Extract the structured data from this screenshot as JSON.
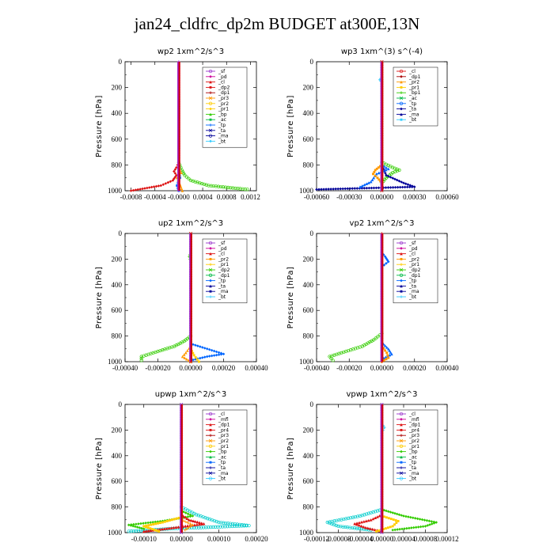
{
  "title": "jan24_cldfrc_dp2m  BUDGET at300E,13N",
  "ylabel": "Pressure [hPa]",
  "colors": {
    "purple": "#9933cc",
    "magenta": "#cc0099",
    "red": "#dd1111",
    "darkred": "#aa0000",
    "orange": "#ff9900",
    "yellow": "#ffcc00",
    "green": "#33cc00",
    "bgreen": "#00bb44",
    "blue": "#0066ff",
    "navy": "#000099",
    "cyan": "#33ccff",
    "teal": "#00cccc"
  },
  "chart_data": [
    {
      "type": "line",
      "title": "wp2   1xm^2/s^3",
      "ylim": [
        1000,
        0
      ],
      "yticks": [
        0,
        200,
        400,
        600,
        800,
        1000
      ],
      "xlim": [
        -0.0009,
        0.0013
      ],
      "xticks": [
        -0.0008,
        -0.0004,
        0.0,
        0.0004,
        0.0008,
        0.0012
      ],
      "xtick_labels": [
        "-0.0008",
        "-0.0004",
        "-0.0000",
        "0.0004",
        "0.0008",
        "0.0012"
      ],
      "legend": [
        "_sf",
        "_pd",
        "_cl",
        "_dp2",
        "_dp1",
        "_pr3",
        "_pr2",
        "_pr1",
        "_bp",
        "_ac",
        "_tp",
        "_ta",
        "_ma",
        "_bt"
      ],
      "legend_colors": [
        "purple",
        "magenta",
        "red",
        "red",
        "darkred",
        "orange",
        "yellow",
        "yellow",
        "green",
        "bgreen",
        "blue",
        "navy",
        "navy",
        "cyan"
      ],
      "series": [
        {
          "color": "green",
          "pressure": [
            780,
            840,
            880,
            920,
            960,
            990
          ],
          "values": [
            0,
            5e-05,
            0.0001,
            0.0002,
            0.0005,
            0.00115
          ]
        },
        {
          "color": "red",
          "pressure": [
            780,
            820,
            850,
            880,
            920,
            960,
            1000
          ],
          "values": [
            0,
            -4e-05,
            -8e-05,
            -4e-05,
            -0.0001,
            -0.0003,
            -0.0008
          ]
        },
        {
          "color": "orange",
          "pressure": [
            820,
            860,
            900,
            950,
            1000
          ],
          "values": [
            0,
            4e-05,
            -3e-05,
            2e-05,
            6e-05
          ]
        },
        {
          "color": "blue",
          "pressure": [
            850,
            900,
            960,
            1000
          ],
          "values": [
            0,
            2e-05,
            -3e-05,
            0
          ]
        },
        {
          "color": "purple",
          "pressure": [
            0,
            200,
            400,
            600,
            800,
            1000
          ],
          "values": [
            0,
            0,
            0,
            0,
            0,
            0
          ]
        }
      ]
    },
    {
      "type": "line",
      "title": "wp3   1xm^(3) s^(-4)",
      "ylim": [
        1000,
        0
      ],
      "yticks": [
        0,
        200,
        400,
        600,
        800,
        1000
      ],
      "xlim": [
        -0.0006,
        0.0006
      ],
      "xticks": [
        -0.0006,
        -0.0003,
        0.0,
        0.0003,
        0.0006
      ],
      "xtick_labels": [
        "-0.00060",
        "-0.00030",
        "0.00000",
        "0.00030",
        "0.00060"
      ],
      "legend": [
        "_cl",
        "_dp1",
        "_pr2",
        "_pr1",
        "_bp1",
        "_ac",
        "_tp",
        "_ta",
        "_ma",
        "_bt"
      ],
      "legend_colors": [
        "red",
        "darkred",
        "orange",
        "yellow",
        "green",
        "bgreen",
        "blue",
        "navy",
        "navy",
        "cyan"
      ],
      "series": [
        {
          "color": "green",
          "pressure": [
            780,
            820,
            840,
            860,
            900,
            940
          ],
          "values": [
            0,
            0.0001,
            0.00016,
            0.0001,
            4e-05,
            0
          ]
        },
        {
          "color": "navy",
          "pressure": [
            800,
            880,
            940,
            970,
            990
          ],
          "values": [
            0,
            4e-05,
            0.0002,
            0.0003,
            -0.0006
          ]
        },
        {
          "color": "blue",
          "pressure": [
            800,
            830,
            870,
            930,
            970
          ],
          "values": [
            0,
            6e-05,
            -5e-05,
            -0.0001,
            -0.0002
          ]
        },
        {
          "color": "orange",
          "pressure": [
            800,
            840,
            870,
            900,
            940
          ],
          "values": [
            0,
            -6e-05,
            -8e-05,
            -4e-05,
            0
          ]
        },
        {
          "color": "cyan",
          "pressure": [
            120,
            140,
            160
          ],
          "values": [
            0,
            -2e-05,
            0
          ]
        },
        {
          "color": "red",
          "pressure": [
            0,
            200,
            400,
            600,
            800,
            1000
          ],
          "values": [
            0,
            0,
            0,
            0,
            0,
            0
          ]
        }
      ]
    },
    {
      "type": "line",
      "title": "up2   1xm^2/s^3",
      "ylim": [
        1000,
        0
      ],
      "yticks": [
        0,
        200,
        400,
        600,
        800,
        1000
      ],
      "xlim": [
        -0.0004,
        0.0004
      ],
      "xticks": [
        -0.0004,
        -0.0002,
        0.0,
        0.0002,
        0.0004
      ],
      "xtick_labels": [
        "-0.00040",
        "-0.00020",
        "0.00000",
        "0.00020",
        "0.00040"
      ],
      "legend": [
        "_sf",
        "_pd",
        "_cl",
        "_pr2",
        "_pr1",
        "_dp2",
        "_dp1",
        "_tp",
        "_ta",
        "_ma",
        "_bt"
      ],
      "legend_colors": [
        "purple",
        "magenta",
        "red",
        "orange",
        "yellow",
        "green",
        "bgreen",
        "blue",
        "navy",
        "navy",
        "cyan"
      ],
      "series": [
        {
          "color": "green",
          "pressure": [
            800,
            840,
            880,
            920,
            960,
            990
          ],
          "values": [
            0,
            -4e-05,
            -0.0001,
            -0.0002,
            -0.0003,
            -0.0003
          ]
        },
        {
          "color": "blue",
          "pressure": [
            860,
            900,
            940,
            960,
            990
          ],
          "values": [
            0,
            0.0001,
            0.0002,
            0.0001,
            0
          ]
        },
        {
          "color": "orange",
          "pressure": [
            880,
            930,
            960,
            1000
          ],
          "values": [
            0,
            -3e-05,
            -5e-05,
            0
          ]
        },
        {
          "color": "yellow",
          "pressure": [
            900,
            950,
            1000
          ],
          "values": [
            0,
            2e-05,
            5e-05
          ]
        },
        {
          "color": "green",
          "pressure": [
            150,
            180,
            220
          ],
          "values": [
            0,
            -1e-05,
            0
          ]
        },
        {
          "color": "red",
          "pressure": [
            0,
            200,
            400,
            600,
            800,
            1000
          ],
          "values": [
            0,
            0,
            0,
            0,
            0,
            0
          ]
        }
      ]
    },
    {
      "type": "line",
      "title": "vp2   1xm^2/s^3",
      "ylim": [
        1000,
        0
      ],
      "yticks": [
        0,
        200,
        400,
        600,
        800,
        1000
      ],
      "xlim": [
        -0.0004,
        0.0004
      ],
      "xticks": [
        -0.0004,
        -0.0002,
        0.0,
        0.0002,
        0.0004
      ],
      "xtick_labels": [
        "-0.00040",
        "-0.00020",
        "0.00000",
        "0.00020",
        "0.00040"
      ],
      "legend": [
        "_sf",
        "_pd",
        "_cl",
        "_pr2",
        "_pr1",
        "_dp2",
        "_dp1",
        "_tp",
        "_ta",
        "_ma",
        "_bt"
      ],
      "legend_colors": [
        "purple",
        "magenta",
        "red",
        "orange",
        "yellow",
        "green",
        "bgreen",
        "blue",
        "navy",
        "navy",
        "cyan"
      ],
      "series": [
        {
          "color": "green",
          "pressure": [
            780,
            830,
            880,
            920,
            960,
            990
          ],
          "values": [
            0,
            -5e-05,
            -0.00012,
            -0.00022,
            -0.00032,
            -0.0003
          ]
        },
        {
          "color": "blue",
          "pressure": [
            150,
            180,
            220,
            260
          ],
          "values": [
            0,
            2e-05,
            4e-05,
            0
          ]
        },
        {
          "color": "blue",
          "pressure": [
            850,
            900,
            940,
            980
          ],
          "values": [
            0,
            4e-05,
            6e-05,
            0
          ]
        },
        {
          "color": "orange",
          "pressure": [
            880,
            930,
            970,
            1000
          ],
          "values": [
            0,
            3e-05,
            4e-05,
            0
          ]
        },
        {
          "color": "red",
          "pressure": [
            0,
            200,
            400,
            600,
            800,
            1000
          ],
          "values": [
            0,
            0,
            0,
            0,
            0,
            0
          ]
        }
      ]
    },
    {
      "type": "line",
      "title": "upwp   1xm^2/s^3",
      "ylim": [
        1000,
        0
      ],
      "yticks": [
        0,
        200,
        400,
        600,
        800,
        1000
      ],
      "xlim": [
        -0.00015,
        0.0002
      ],
      "xticks": [
        -0.0001,
        0.0,
        0.0001,
        0.0002
      ],
      "xtick_labels": [
        "-0.00010",
        "0.00000",
        "0.00010",
        "0.00020"
      ],
      "legend": [
        "_cl",
        "_mfl",
        "_dp1",
        "_pr4",
        "_pr3",
        "_pr2",
        "_pr1",
        "_bp",
        "_ac",
        "_tp",
        "_ta",
        "_ma",
        "_bt"
      ],
      "legend_colors": [
        "purple",
        "magenta",
        "red",
        "red",
        "darkred",
        "orange",
        "yellow",
        "green",
        "bgreen",
        "blue",
        "navy",
        "navy",
        "cyan"
      ],
      "series": [
        {
          "color": "teal",
          "pressure": [
            800,
            860,
            920,
            945,
            970,
            990
          ],
          "values": [
            0,
            4e-05,
            0.0001,
            0.00018,
            -3e-05,
            -0.00014
          ]
        },
        {
          "color": "green",
          "pressure": [
            830,
            870,
            910,
            940,
            970
          ],
          "values": [
            0,
            3e-05,
            -5e-05,
            -0.00014,
            -0.0001
          ]
        },
        {
          "color": "red",
          "pressure": [
            860,
            900,
            930,
            960,
            990
          ],
          "values": [
            0,
            2e-05,
            6e-05,
            -2e-05,
            -0.0001
          ]
        },
        {
          "color": "yellow",
          "pressure": [
            880,
            920,
            950,
            990
          ],
          "values": [
            0,
            -5e-05,
            -0.0001,
            -6e-05
          ]
        },
        {
          "color": "orange",
          "pressure": [
            900,
            940,
            980
          ],
          "values": [
            0,
            3e-05,
            1e-05
          ]
        },
        {
          "color": "purple",
          "pressure": [
            0,
            200,
            400,
            600,
            800,
            1000
          ],
          "values": [
            0,
            0,
            0,
            0,
            0,
            0
          ]
        }
      ]
    },
    {
      "type": "line",
      "title": "vpwp   1xm^2/s^3",
      "ylim": [
        1000,
        0
      ],
      "yticks": [
        0,
        200,
        400,
        600,
        800,
        1000
      ],
      "xlim": [
        -0.00012,
        0.00012
      ],
      "xticks": [
        -0.00012,
        -8e-05,
        -4e-05,
        0.0,
        4e-05,
        8e-05,
        0.00012
      ],
      "xtick_labels": [
        "-0.00012",
        "-0.00008",
        "-0.00004",
        "0.00000",
        "0.00004",
        "0.00008",
        "0.00012"
      ],
      "legend": [
        "_cl",
        "_mfl",
        "_dp1",
        "_pr4",
        "_pr3",
        "_pr2",
        "_pr1",
        "_bp",
        "_ac",
        "_tp",
        "_ta",
        "_ma",
        "_bt"
      ],
      "legend_colors": [
        "purple",
        "magenta",
        "red",
        "red",
        "darkred",
        "orange",
        "yellow",
        "green",
        "bgreen",
        "blue",
        "navy",
        "navy",
        "cyan"
      ],
      "series": [
        {
          "color": "teal",
          "pressure": [
            820,
            870,
            920,
            950,
            980
          ],
          "values": [
            0,
            -4e-05,
            -0.0001,
            -8e-05,
            -2e-05
          ]
        },
        {
          "color": "green",
          "pressure": [
            820,
            870,
            920,
            950,
            980
          ],
          "values": [
            0,
            4e-05,
            0.0001,
            8e-05,
            2e-05
          ]
        },
        {
          "color": "red",
          "pressure": [
            860,
            900,
            930,
            960,
            990
          ],
          "values": [
            0,
            -2e-05,
            -5e-05,
            -3e-05,
            0
          ]
        },
        {
          "color": "yellow",
          "pressure": [
            870,
            910,
            950,
            990
          ],
          "values": [
            0,
            3e-05,
            2e-05,
            -1e-05
          ]
        },
        {
          "color": "cyan",
          "pressure": [
            150,
            180,
            220
          ],
          "values": [
            0,
            5e-06,
            0
          ]
        },
        {
          "color": "purple",
          "pressure": [
            0,
            200,
            400,
            600,
            800,
            1000
          ],
          "values": [
            0,
            0,
            0,
            0,
            0,
            0
          ]
        }
      ]
    }
  ]
}
